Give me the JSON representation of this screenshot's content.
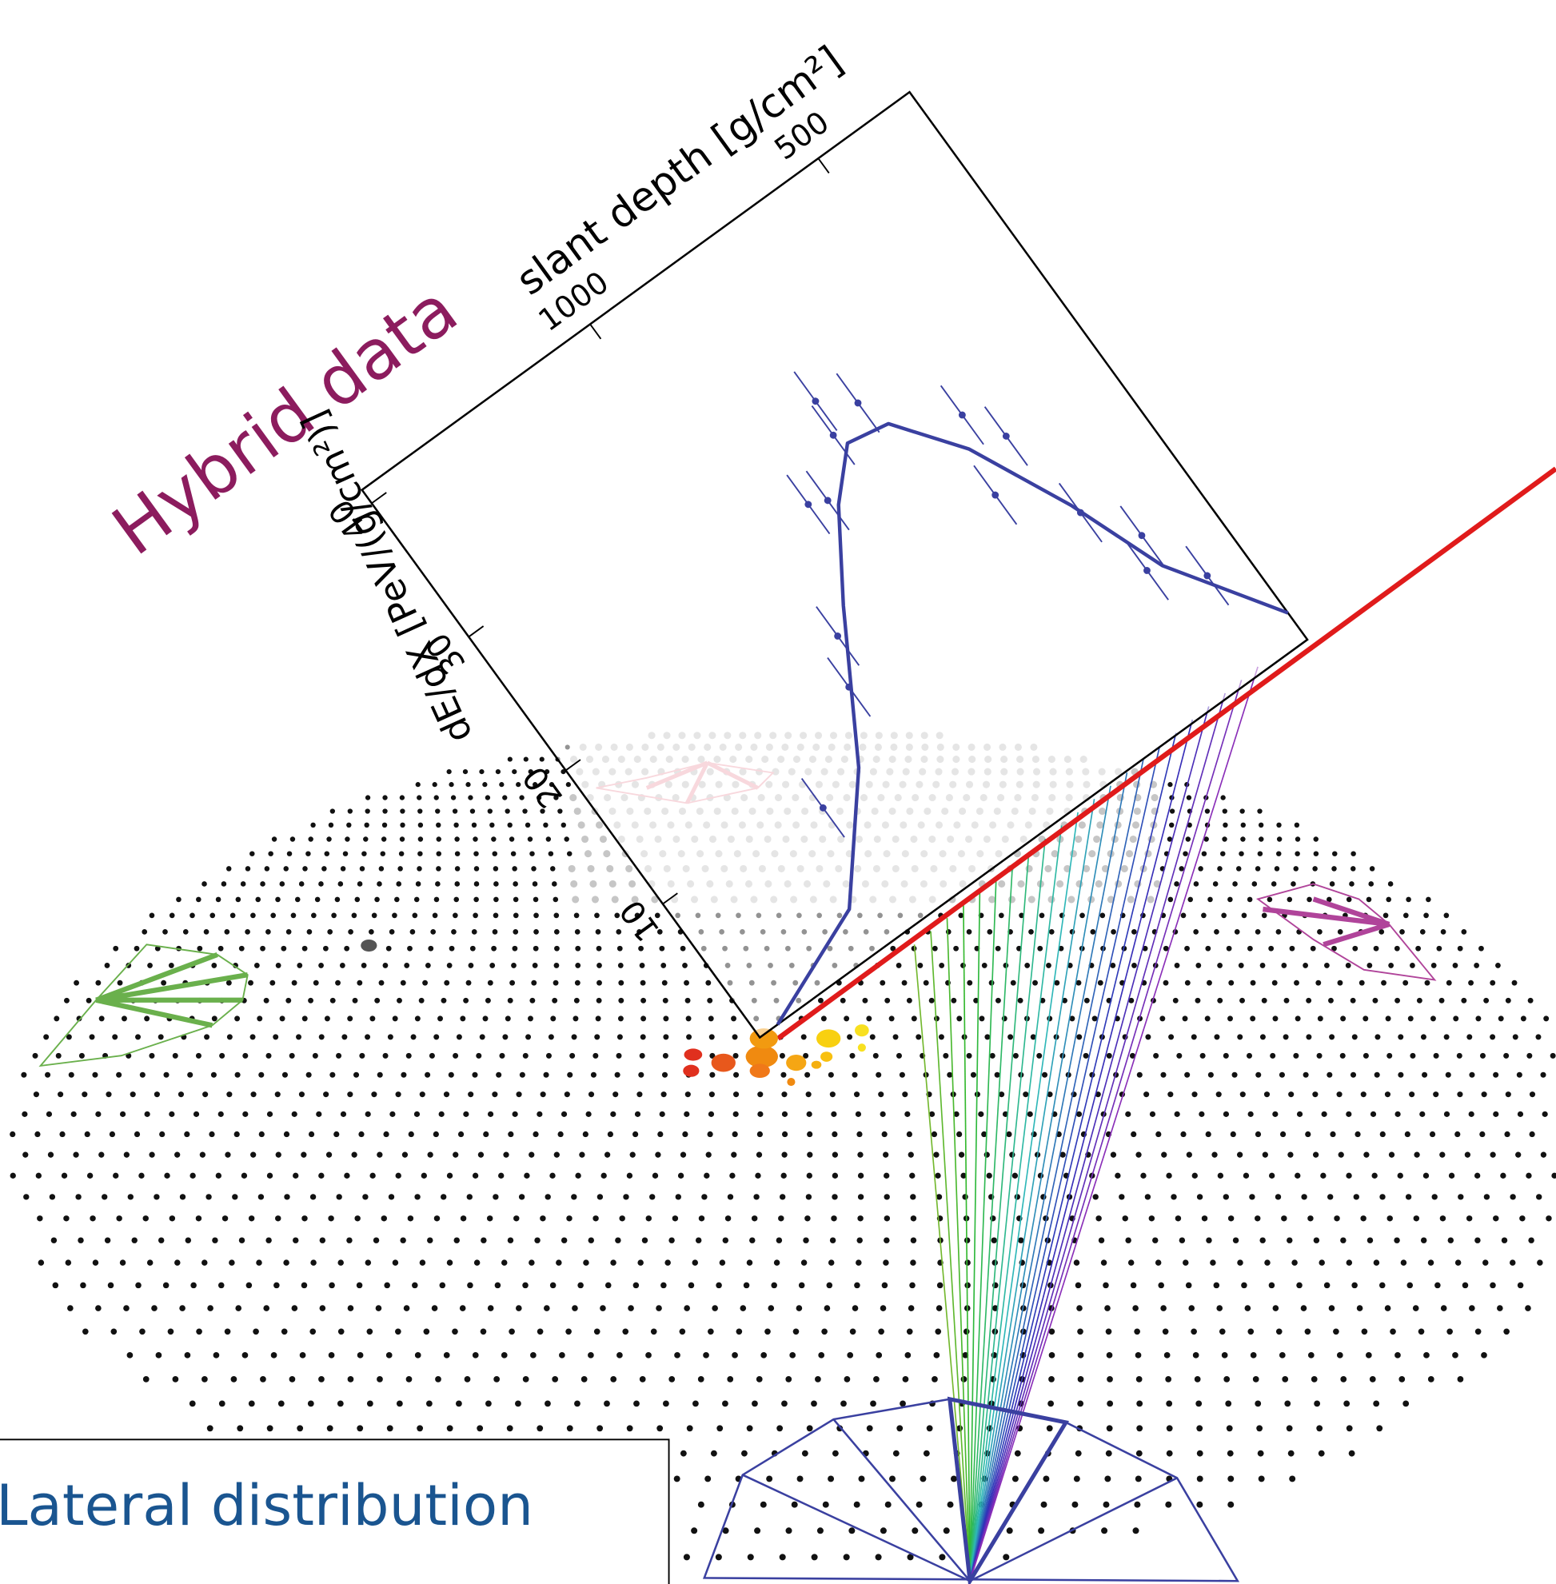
{
  "title": "Hybrid data",
  "profile": {
    "x_label": "slant depth [g/cm²]",
    "y_label": "dE/dX [PeV/(g/cm²)]",
    "xlim": [
      1500,
      300
    ],
    "ylim": [
      0,
      41
    ],
    "xticks": [
      1000,
      500
    ],
    "yticks": [
      10,
      20,
      30,
      40
    ],
    "fit": {
      "x": [
        1461,
        1238,
        1077,
        930,
        832,
        755,
        676,
        587,
        499,
        431,
        300
      ],
      "y": [
        0,
        3.1,
        9.7,
        18.2,
        23.3,
        26.0,
        25.5,
        21.4,
        15.0,
        8.8,
        2.0
      ]
    },
    "points": {
      "x": [
        767,
        698,
        757,
        843,
        875,
        970,
        1007,
        1170,
        561,
        520,
        597,
        493,
        429,
        458,
        377
      ],
      "y": [
        26.9,
        27.6,
        29.2,
        23.9,
        24.4,
        16.9,
        14.0,
        9.0,
        23.3,
        20.7,
        18.2,
        14.3,
        11.0,
        9.1,
        6.7
      ],
      "errors": [
        2.2,
        2.2,
        2.2,
        2.2,
        2.2,
        2.2,
        2.2,
        2.2,
        2.2,
        2.2,
        2.2,
        2.2,
        2.2,
        2.2,
        2.2
      ]
    }
  },
  "inset": {
    "title": "Lateral distribution"
  }
}
